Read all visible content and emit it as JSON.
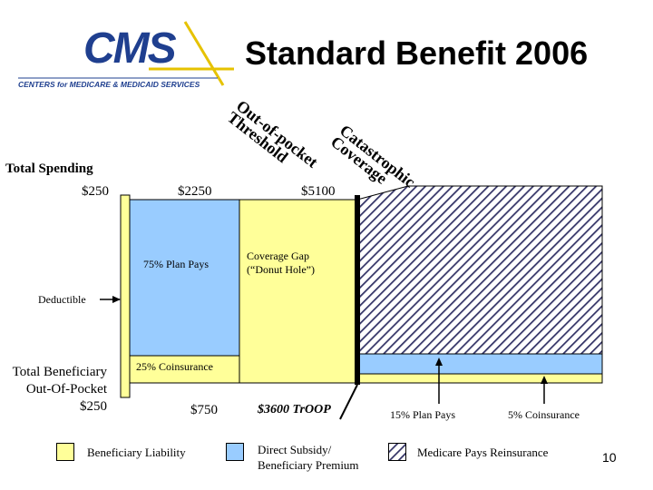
{
  "header": {
    "logo_text": "CMS",
    "logo_tagline": "CENTERS for MEDICARE & MEDICAID SERVICES",
    "title": "Standard Benefit 2006"
  },
  "diagram": {
    "top_labels": {
      "oop_threshold": [
        "Out-of-pocket",
        "Threshold"
      ],
      "catastrophic": [
        "Catastrophic",
        "Coverage"
      ]
    },
    "total_spending": {
      "label": "Total Spending",
      "amount_1": "$250",
      "amount_2": "$2250",
      "amount_3": "$5100"
    },
    "regions": {
      "plan_pays": "75% Plan Pays",
      "coverage_gap_1": "Coverage Gap",
      "coverage_gap_2": "(“Donut Hole”)",
      "coinsurance": "25% Coinsurance"
    },
    "deductible_label": "Deductible",
    "beneficiary_oop": {
      "line1": "Total Beneficiary",
      "line2": "Out-Of-Pocket",
      "amount": "$250",
      "amount_2": "$750",
      "troop": "$3600 TrOOP"
    },
    "catastrophic_split": {
      "plan_pays": "15% Plan Pays",
      "coinsurance": "5% Coinsurance"
    },
    "colors": {
      "beneficiary_liability": "#ffff99",
      "direct_subsidy": "#99ccff",
      "reinsurance_hatch": "#333366"
    }
  },
  "legend": {
    "beneficiary_liability": "Beneficiary Liability",
    "direct_subsidy_1": "Direct Subsidy/",
    "direct_subsidy_2": "Beneficiary Premium",
    "reinsurance": "Medicare Pays Reinsurance"
  },
  "page_number": "10"
}
